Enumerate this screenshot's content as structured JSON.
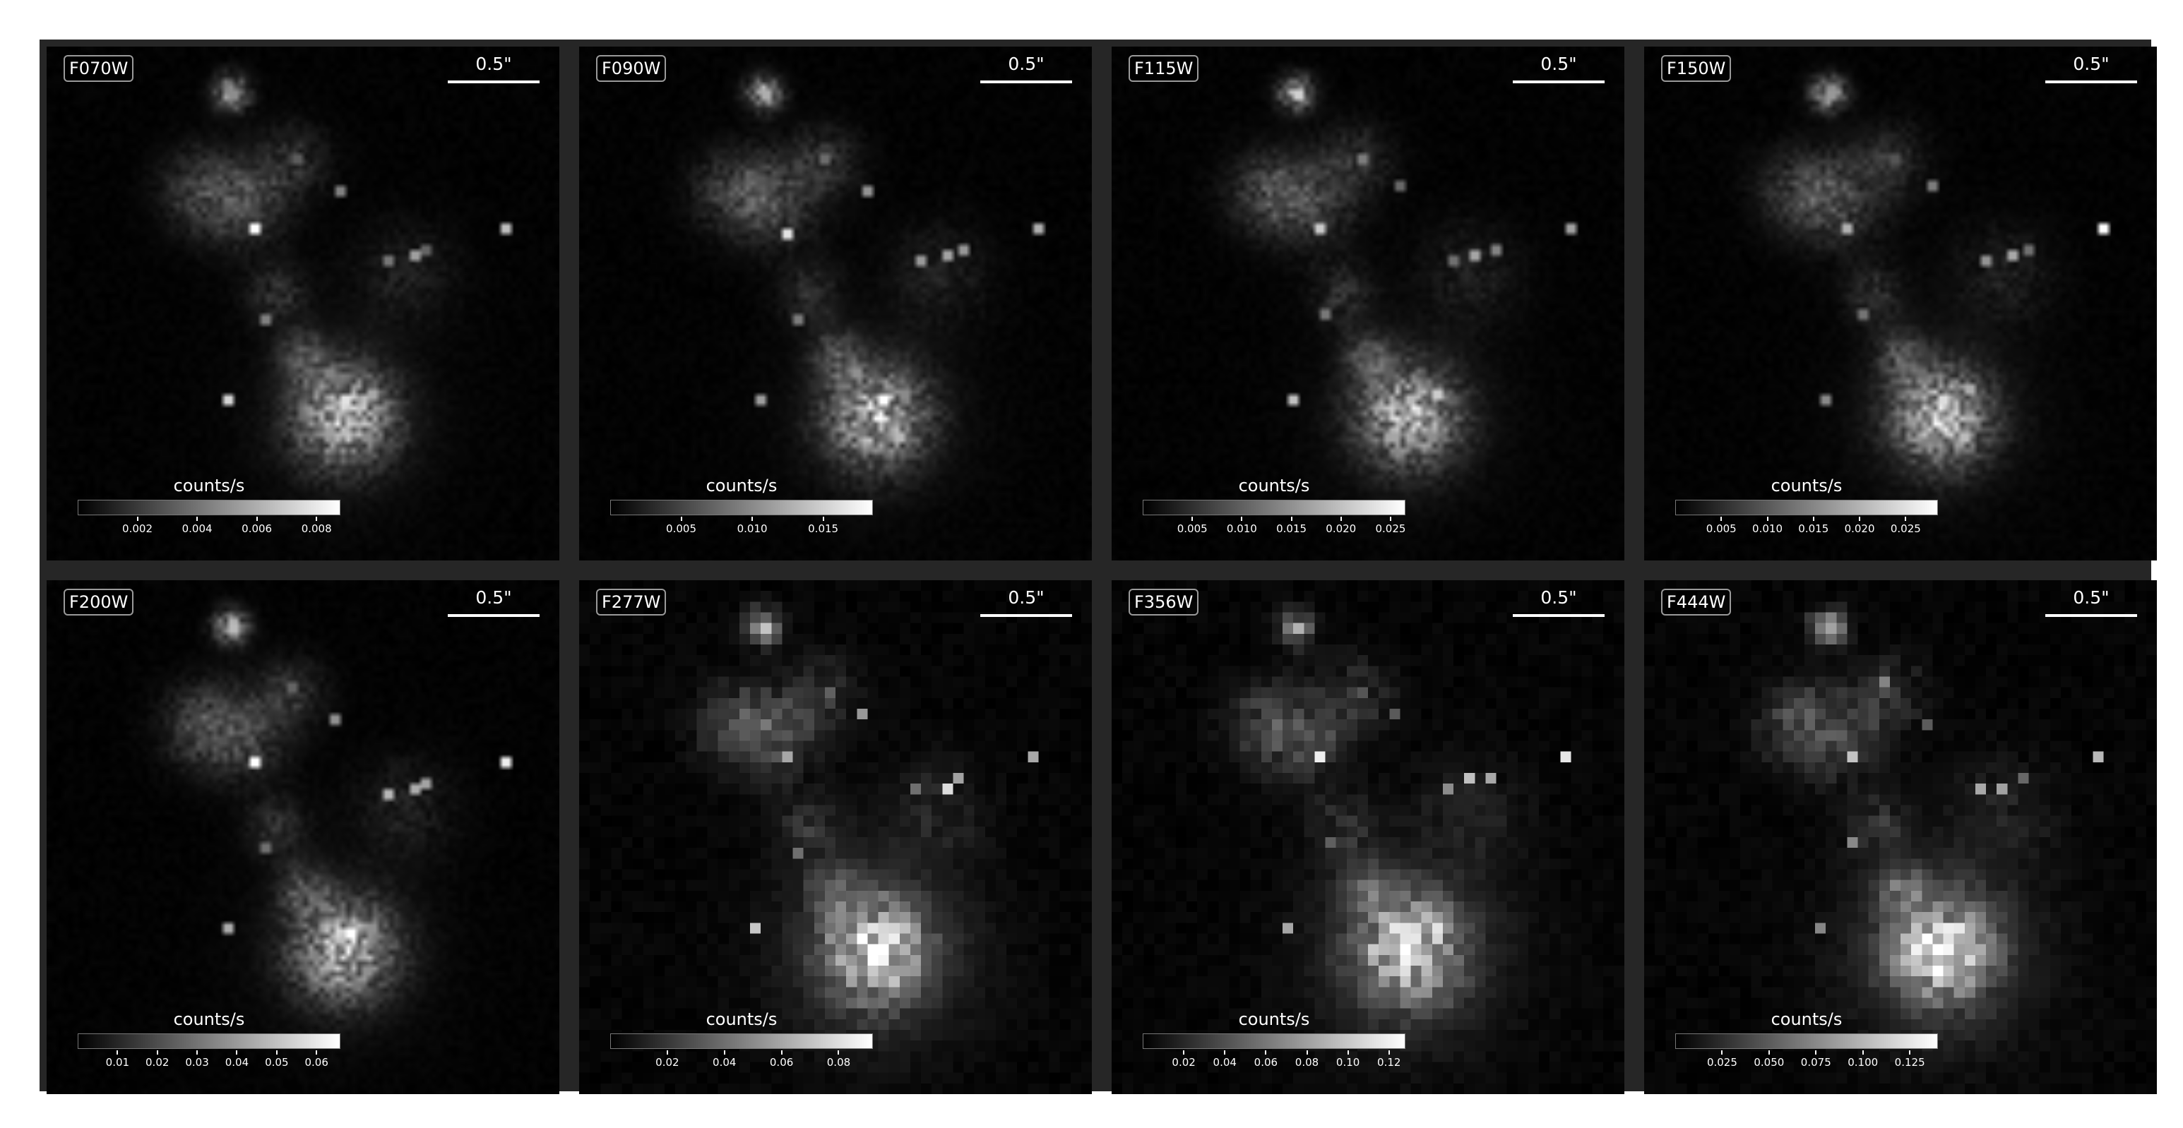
{
  "scale_label": "0.5\"",
  "colorbar_label": "counts/s",
  "panels": [
    {
      "filter": "F070W",
      "ticks": [
        "0.002",
        "0.004",
        "0.006",
        "0.008"
      ],
      "tick_values": [
        0.002,
        0.004,
        0.006,
        0.008
      ],
      "cb_min": 0.0,
      "cb_max": 0.0088,
      "style": "sharp"
    },
    {
      "filter": "F090W",
      "ticks": [
        "0.005",
        "0.010",
        "0.015"
      ],
      "tick_values": [
        0.005,
        0.01,
        0.015
      ],
      "cb_min": 0.0,
      "cb_max": 0.0185,
      "style": "sharp"
    },
    {
      "filter": "F115W",
      "ticks": [
        "0.005",
        "0.010",
        "0.015",
        "0.020",
        "0.025"
      ],
      "tick_values": [
        0.005,
        0.01,
        0.015,
        0.02,
        0.025
      ],
      "cb_min": 0.0,
      "cb_max": 0.0265,
      "style": "sharp"
    },
    {
      "filter": "F150W",
      "ticks": [
        "0.005",
        "0.010",
        "0.015",
        "0.020",
        "0.025"
      ],
      "tick_values": [
        0.005,
        0.01,
        0.015,
        0.02,
        0.025
      ],
      "cb_min": 0.0,
      "cb_max": 0.0285,
      "style": "sharp"
    },
    {
      "filter": "F200W",
      "ticks": [
        "0.01",
        "0.02",
        "0.03",
        "0.04",
        "0.05",
        "0.06"
      ],
      "tick_values": [
        0.01,
        0.02,
        0.03,
        0.04,
        0.05,
        0.06
      ],
      "cb_min": 0.0,
      "cb_max": 0.066,
      "style": "sharp"
    },
    {
      "filter": "F277W",
      "ticks": [
        "0.02",
        "0.04",
        "0.06",
        "0.08"
      ],
      "tick_values": [
        0.02,
        0.04,
        0.06,
        0.08
      ],
      "cb_min": 0.0,
      "cb_max": 0.092,
      "style": "pixel"
    },
    {
      "filter": "F356W",
      "ticks": [
        "0.02",
        "0.04",
        "0.06",
        "0.08",
        "0.10",
        "0.12"
      ],
      "tick_values": [
        0.02,
        0.04,
        0.06,
        0.08,
        0.1,
        0.12
      ],
      "cb_min": 0.0,
      "cb_max": 0.128,
      "style": "pixel"
    },
    {
      "filter": "F444W",
      "ticks": [
        "0.025",
        "0.050",
        "0.075",
        "0.100",
        "0.125"
      ],
      "tick_values": [
        0.025,
        0.05,
        0.075,
        0.1,
        0.125
      ],
      "cb_min": 0.0,
      "cb_max": 0.14,
      "style": "pixel"
    }
  ]
}
